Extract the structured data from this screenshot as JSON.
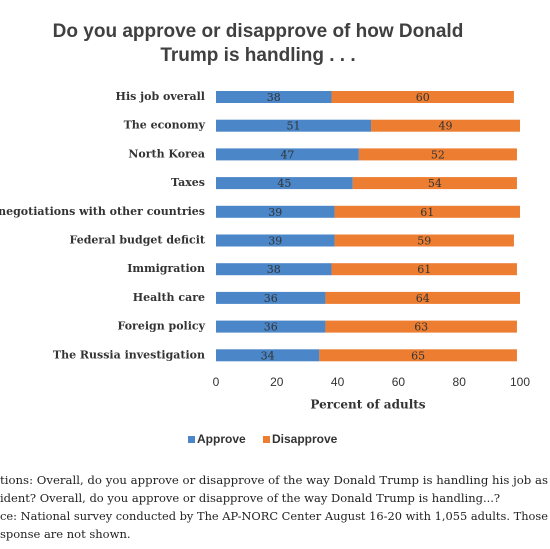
{
  "chart_data": {
    "type": "stacked-bar-horizontal",
    "title": [
      "Do you approve or disapprove of how Donald",
      "Trump is handling . . ."
    ],
    "categories": [
      "His job overall",
      "The economy",
      "North Korea",
      "Taxes",
      "de negotiations with other countries",
      "Federal budget deficit",
      "Immigration",
      "Health care",
      "Foreign policy",
      "The Russia investigation"
    ],
    "series": [
      {
        "name": "Approve",
        "color": "#4a86c8",
        "values": [
          38,
          51,
          47,
          45,
          39,
          39,
          38,
          36,
          36,
          34
        ]
      },
      {
        "name": "Disapprove",
        "color": "#ed7d31",
        "values": [
          60,
          49,
          52,
          54,
          61,
          59,
          61,
          64,
          63,
          65
        ]
      }
    ],
    "xlim": [
      0,
      100
    ],
    "xticks": [
      0,
      20,
      40,
      60,
      80,
      100
    ],
    "xlabel": "Percent of adults",
    "legend": "bottom",
    "notes": [
      "tions: Overall, do you approve or disapprove of the way Donald Trump is handling his job as",
      "ident? Overall, do you approve or disapprove of the way Donald Trump is handling...?",
      "ce: National survey conducted by The AP-NORC Center August 16-20 with 1,055 adults. Those",
      "sponse are not shown."
    ]
  }
}
